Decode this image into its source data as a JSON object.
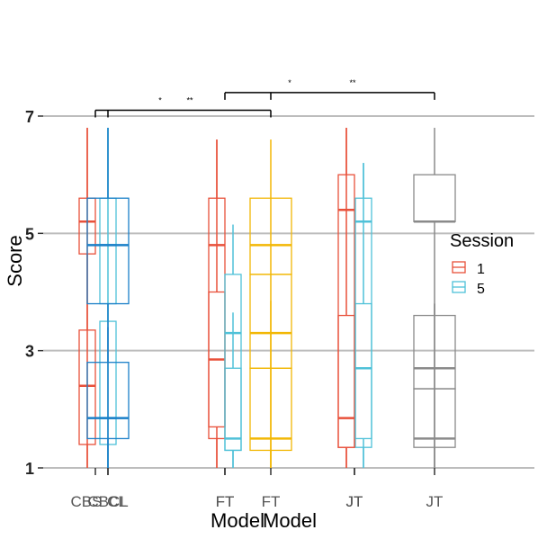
{
  "chart_data": {
    "type": "boxplot",
    "title": "",
    "xlabel": "Model",
    "ylabel": "Score",
    "ylim": [
      1,
      7
    ],
    "y_ticks": [
      1,
      3,
      5,
      7
    ],
    "grid": "major-y",
    "legend": {
      "title": "Session",
      "position": "right",
      "entries": [
        {
          "label": "1",
          "color": "#e8503a"
        },
        {
          "label": "5",
          "color": "#4fc1d8"
        }
      ]
    },
    "layers": [
      {
        "tick_labels": [
          "CL",
          "FT",
          "JT"
        ],
        "boxes": [
          {
            "group": "CL",
            "session": "1",
            "color": "#e8503a",
            "whisker_low": 1.0,
            "q1": 1.4,
            "median": 2.4,
            "q3": 3.35,
            "whisker_high": 6.8
          },
          {
            "group": "CL",
            "session": "5",
            "color": "#4fc1d8",
            "whisker_low": 1.0,
            "q1": 1.4,
            "median": 1.85,
            "q3": 3.5,
            "whisker_high": 6.8
          },
          {
            "group": "FT",
            "session": "1",
            "color": "#e8503a",
            "whisker_low": 1.0,
            "q1": 1.5,
            "median": 2.85,
            "q3": 4.0,
            "whisker_high": 6.6
          },
          {
            "group": "FT",
            "session": "5",
            "color": "#4fc1d8",
            "whisker_low": 1.0,
            "q1": 1.3,
            "median": 1.5,
            "q3": 2.7,
            "whisker_high": 3.65
          },
          {
            "group": "JT",
            "session": "1",
            "color": "#e8503a",
            "whisker_low": 1.0,
            "q1": 1.35,
            "median": 1.85,
            "q3": 3.6,
            "whisker_high": 6.8
          },
          {
            "group": "JT",
            "session": "5",
            "color": "#4fc1d8",
            "whisker_low": 1.0,
            "q1": 1.35,
            "median": 2.7,
            "q3": 3.8,
            "whisker_high": 6.2
          }
        ]
      },
      {
        "tick_labels": [
          "CBS",
          "FT",
          "JT"
        ],
        "boxes": [
          {
            "group": "CBS",
            "session": "1",
            "color": "#e8503a",
            "whisker_low": 1.0,
            "q1": 4.65,
            "median": 5.2,
            "q3": 5.6,
            "whisker_high": 6.8
          },
          {
            "group": "CBS",
            "session": "5",
            "color": "#4fc1d8",
            "whisker_low": 1.0,
            "q1": 3.8,
            "median": 4.8,
            "q3": 5.6,
            "whisker_high": 6.8
          },
          {
            "group": "FT",
            "session": "1",
            "color": "#e8503a",
            "whisker_low": 1.0,
            "q1": 1.7,
            "median": 4.8,
            "q3": 5.6,
            "whisker_high": 6.6
          },
          {
            "group": "FT",
            "session": "5",
            "color": "#4fc1d8",
            "whisker_low": 1.0,
            "q1": 1.3,
            "median": 3.3,
            "q3": 4.3,
            "whisker_high": 5.15
          },
          {
            "group": "JT",
            "session": "1",
            "color": "#e8503a",
            "whisker_low": 1.0,
            "q1": 1.35,
            "median": 5.4,
            "q3": 6.0,
            "whisker_high": 6.8
          },
          {
            "group": "JT",
            "session": "5",
            "color": "#4fc1d8",
            "whisker_low": 1.0,
            "q1": 1.5,
            "median": 5.2,
            "q3": 5.6,
            "whisker_high": 6.2
          }
        ]
      },
      {
        "tick_labels": [
          "CBCL",
          "FT",
          "JT"
        ],
        "boxes": [
          {
            "group": "CBCL",
            "color": "#1a7fc8",
            "whisker_low": 1.0,
            "q1": 1.5,
            "median": 1.85,
            "q3": 2.8,
            "whisker_high": 3.4
          },
          {
            "group": "CBCL",
            "color": "#1a7fc8",
            "whisker_low": 1.0,
            "q1": 3.8,
            "median": 4.8,
            "q3": 5.6,
            "whisker_high": 6.8
          },
          {
            "group": "FT",
            "color": "#f2b705",
            "whisker_low": 1.0,
            "q1": 1.3,
            "median": 1.5,
            "q3": 2.7,
            "whisker_high": 3.85
          },
          {
            "group": "FT",
            "color": "#f2b705",
            "whisker_low": 1.0,
            "q1": 2.7,
            "median": 3.3,
            "q3": 4.3,
            "whisker_high": 5.6
          },
          {
            "group": "FT",
            "color": "#f2b705",
            "whisker_low": 1.0,
            "q1": 4.3,
            "median": 4.8,
            "q3": 5.6,
            "whisker_high": 6.6
          },
          {
            "group": "JT",
            "color": "#8a8a8a",
            "whisker_low": 1.0,
            "q1": 1.35,
            "median": 1.5,
            "q3": 2.35,
            "whisker_high": 3.8
          },
          {
            "group": "JT",
            "color": "#8a8a8a",
            "whisker_low": 1.0,
            "q1": 2.35,
            "median": 2.7,
            "q3": 3.6,
            "whisker_high": 3.8
          },
          {
            "group": "JT",
            "color": "#8a8a8a",
            "whisker_low": 1.0,
            "q1": 5.2,
            "median": 5.2,
            "q3": 6.0,
            "whisker_high": 6.8
          }
        ]
      }
    ],
    "significance": [
      {
        "from": "CBCL",
        "to": "FT",
        "labels": [
          "*",
          "**"
        ],
        "y": 7.1
      },
      {
        "from": "FT",
        "to": "JT",
        "labels": [
          "*",
          "**"
        ],
        "y": 7.4
      }
    ]
  }
}
